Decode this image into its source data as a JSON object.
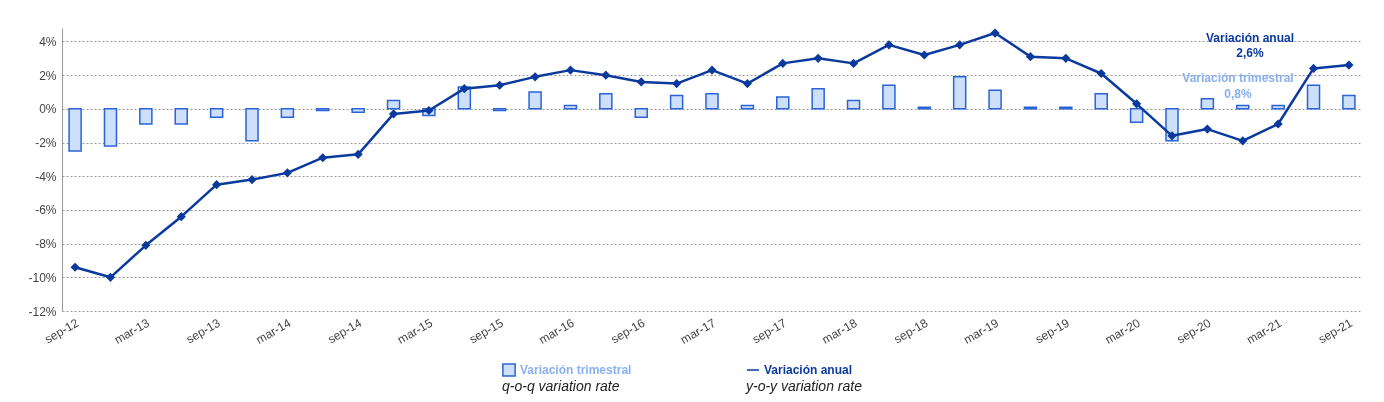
{
  "chart_data": {
    "type": "bar",
    "categories": [
      "sep-12",
      null,
      "mar-13",
      null,
      "sep-13",
      null,
      "mar-14",
      null,
      "sep-14",
      null,
      "mar-15",
      null,
      "sep-15",
      null,
      "mar-16",
      null,
      "sep-16",
      null,
      "mar-17",
      null,
      "sep-17",
      null,
      "mar-18",
      null,
      "sep-18",
      null,
      "mar-19",
      null,
      "sep-19",
      null,
      "mar-20",
      null,
      "sep-20",
      null,
      "mar-21",
      null,
      "sep-21"
    ],
    "series": [
      {
        "name": "Variación trimestral",
        "color": "#cddffa",
        "values": [
          -2.5,
          -2.2,
          -0.9,
          -0.9,
          -0.5,
          -1.9,
          -0.5,
          -0.1,
          -0.2,
          0.5,
          -0.4,
          1.3,
          -0.1,
          1.0,
          0.2,
          0.9,
          -0.5,
          0.8,
          0.9,
          0.2,
          0.7,
          1.2,
          0.5,
          1.4,
          0.1,
          1.9,
          1.1,
          0.1,
          0.1,
          0.9,
          -0.8,
          -1.9,
          0.6,
          0.2,
          0.2,
          1.4,
          0.8
        ]
      },
      {
        "name": "Variación anual",
        "type": "line",
        "color": "#0b3a9e",
        "marker": "diamond",
        "values": [
          -9.4,
          -10.0,
          -8.1,
          -6.4,
          -4.5,
          -4.2,
          -3.8,
          -2.9,
          -2.7,
          -0.3,
          -0.1,
          1.2,
          1.4,
          1.9,
          2.3,
          2.0,
          1.6,
          1.5,
          2.3,
          1.5,
          2.7,
          3.0,
          2.7,
          3.8,
          3.2,
          3.8,
          4.5,
          3.1,
          3.0,
          2.1,
          0.3,
          -1.6,
          -1.2,
          -1.9,
          -0.9,
          2.4,
          2.6
        ]
      }
    ],
    "ylim": [
      -12,
      4.8
    ],
    "yticks": [
      {
        "value": -12,
        "label": "-12%"
      },
      {
        "value": -10,
        "label": "-10%"
      },
      {
        "value": -8,
        "label": "-8%"
      },
      {
        "value": -6,
        "label": "-6%"
      },
      {
        "value": -4,
        "label": "-4%"
      },
      {
        "value": -2,
        "label": "-2%"
      },
      {
        "value": 0,
        "label": "0%"
      },
      {
        "value": 2,
        "label": "2%"
      },
      {
        "value": 4,
        "label": "4%"
      }
    ],
    "grid": "y",
    "legend": "bottom",
    "annotations": [
      "Variación anual",
      "2,6%",
      "Variación trimestral",
      "0,8%",
      "q-o-q variation rate",
      "y-o-y variation rate"
    ]
  }
}
